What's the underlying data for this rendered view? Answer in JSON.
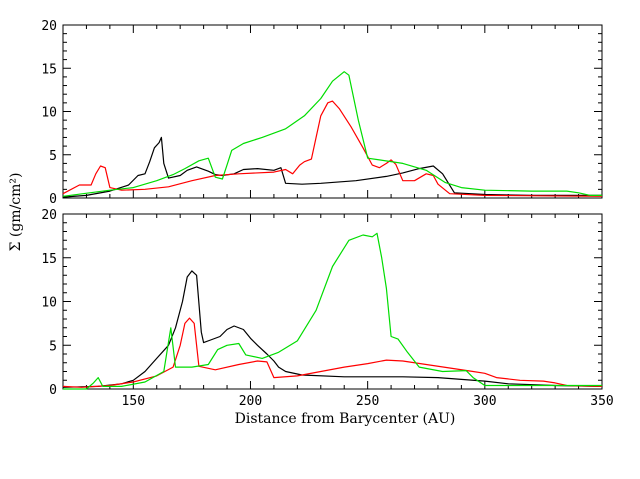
{
  "chart_data": {
    "type": "line",
    "xlabel": "Distance from Barycenter (AU)",
    "ylabel": "Σ (gm/cm²)",
    "xlim": [
      120,
      350
    ],
    "ylim": [
      0,
      20
    ],
    "x_ticks": [
      150,
      200,
      250,
      300,
      350
    ],
    "x_tick_labels": [
      "150",
      "200",
      "250",
      "300",
      "350"
    ],
    "y_ticks": [
      0,
      5,
      10,
      15,
      20
    ],
    "y_tick_labels": [
      "0",
      "5",
      "10",
      "15",
      "20"
    ],
    "grid": false,
    "legend": "none",
    "panels": [
      {
        "panel": "top",
        "series": [
          {
            "color": "#000000",
            "points": [
              [
                120,
                0.1
              ],
              [
                130,
                0.3
              ],
              [
                140,
                0.8
              ],
              [
                148,
                1.5
              ],
              [
                152,
                2.6
              ],
              [
                155,
                2.8
              ],
              [
                157,
                4.2
              ],
              [
                159,
                5.8
              ],
              [
                161,
                6.4
              ],
              [
                162,
                7.0
              ],
              [
                163,
                4.0
              ],
              [
                165,
                2.3
              ],
              [
                170,
                2.6
              ],
              [
                173,
                3.2
              ],
              [
                177,
                3.6
              ],
              [
                182,
                3.1
              ],
              [
                185,
                2.7
              ],
              [
                188,
                2.6
              ],
              [
                193,
                2.8
              ],
              [
                197,
                3.3
              ],
              [
                203,
                3.4
              ],
              [
                210,
                3.2
              ],
              [
                213,
                3.5
              ],
              [
                215,
                1.7
              ],
              [
                222,
                1.6
              ],
              [
                230,
                1.7
              ],
              [
                245,
                2.0
              ],
              [
                258,
                2.5
              ],
              [
                265,
                2.9
              ],
              [
                272,
                3.4
              ],
              [
                278,
                3.7
              ],
              [
                282,
                2.8
              ],
              [
                287,
                0.6
              ],
              [
                300,
                0.4
              ],
              [
                320,
                0.3
              ],
              [
                350,
                0.3
              ]
            ]
          },
          {
            "color": "#ff0000",
            "points": [
              [
                120,
                0.5
              ],
              [
                127,
                1.5
              ],
              [
                132,
                1.5
              ],
              [
                134,
                2.8
              ],
              [
                136,
                3.7
              ],
              [
                138,
                3.5
              ],
              [
                140,
                1.2
              ],
              [
                145,
                0.9
              ],
              [
                155,
                1.0
              ],
              [
                165,
                1.3
              ],
              [
                175,
                2.0
              ],
              [
                185,
                2.6
              ],
              [
                195,
                2.8
              ],
              [
                210,
                3.0
              ],
              [
                215,
                3.3
              ],
              [
                218,
                2.8
              ],
              [
                221,
                3.8
              ],
              [
                223,
                4.2
              ],
              [
                226,
                4.5
              ],
              [
                228,
                7.0
              ],
              [
                230,
                9.5
              ],
              [
                233,
                11.0
              ],
              [
                235,
                11.2
              ],
              [
                238,
                10.3
              ],
              [
                243,
                8.2
              ],
              [
                248,
                5.8
              ],
              [
                252,
                3.8
              ],
              [
                255,
                3.5
              ],
              [
                258,
                4.0
              ],
              [
                260,
                4.4
              ],
              [
                262,
                3.9
              ],
              [
                265,
                2.0
              ],
              [
                270,
                2.0
              ],
              [
                275,
                2.8
              ],
              [
                278,
                2.6
              ],
              [
                280,
                1.6
              ],
              [
                285,
                0.5
              ],
              [
                300,
                0.3
              ],
              [
                350,
                0.2
              ]
            ]
          },
          {
            "color": "#00dd00",
            "points": [
              [
                120,
                0.2
              ],
              [
                140,
                0.9
              ],
              [
                150,
                1.2
              ],
              [
                160,
                2.0
              ],
              [
                167,
                2.7
              ],
              [
                172,
                3.4
              ],
              [
                178,
                4.3
              ],
              [
                182,
                4.6
              ],
              [
                185,
                2.4
              ],
              [
                188,
                2.2
              ],
              [
                190,
                3.8
              ],
              [
                192,
                5.5
              ],
              [
                197,
                6.3
              ],
              [
                205,
                7.0
              ],
              [
                215,
                8.0
              ],
              [
                223,
                9.5
              ],
              [
                230,
                11.5
              ],
              [
                235,
                13.5
              ],
              [
                240,
                14.6
              ],
              [
                242,
                14.2
              ],
              [
                246,
                9.0
              ],
              [
                250,
                4.6
              ],
              [
                255,
                4.4
              ],
              [
                265,
                4.0
              ],
              [
                275,
                3.2
              ],
              [
                283,
                1.8
              ],
              [
                290,
                1.2
              ],
              [
                300,
                0.9
              ],
              [
                320,
                0.8
              ],
              [
                335,
                0.8
              ],
              [
                340,
                0.6
              ],
              [
                345,
                0.3
              ],
              [
                350,
                0.3
              ]
            ]
          }
        ]
      },
      {
        "panel": "bottom",
        "series": [
          {
            "color": "#000000",
            "points": [
              [
                120,
                0.2
              ],
              [
                135,
                0.3
              ],
              [
                145,
                0.6
              ],
              [
                150,
                1.0
              ],
              [
                155,
                2.0
              ],
              [
                160,
                3.5
              ],
              [
                165,
                5.0
              ],
              [
                168,
                7.0
              ],
              [
                171,
                10.0
              ],
              [
                173,
                12.8
              ],
              [
                175,
                13.5
              ],
              [
                177,
                13.0
              ],
              [
                179,
                6.5
              ],
              [
                180,
                5.3
              ],
              [
                183,
                5.6
              ],
              [
                187,
                6.0
              ],
              [
                190,
                6.8
              ],
              [
                193,
                7.2
              ],
              [
                197,
                6.8
              ],
              [
                200,
                5.8
              ],
              [
                203,
                5.0
              ],
              [
                207,
                4.0
              ],
              [
                210,
                3.2
              ],
              [
                212,
                2.5
              ],
              [
                215,
                2.0
              ],
              [
                222,
                1.6
              ],
              [
                240,
                1.4
              ],
              [
                265,
                1.4
              ],
              [
                280,
                1.3
              ],
              [
                300,
                0.9
              ],
              [
                310,
                0.6
              ],
              [
                330,
                0.4
              ],
              [
                350,
                0.3
              ]
            ]
          },
          {
            "color": "#ff0000",
            "points": [
              [
                120,
                0.3
              ],
              [
                128,
                0.2
              ],
              [
                140,
                0.4
              ],
              [
                150,
                0.8
              ],
              [
                160,
                1.5
              ],
              [
                167,
                2.5
              ],
              [
                170,
                5.0
              ],
              [
                172,
                7.5
              ],
              [
                174,
                8.1
              ],
              [
                176,
                7.5
              ],
              [
                178,
                2.6
              ],
              [
                185,
                2.2
              ],
              [
                195,
                2.8
              ],
              [
                203,
                3.2
              ],
              [
                207,
                3.1
              ],
              [
                210,
                1.3
              ],
              [
                220,
                1.5
              ],
              [
                230,
                2.0
              ],
              [
                240,
                2.5
              ],
              [
                250,
                2.9
              ],
              [
                258,
                3.3
              ],
              [
                265,
                3.2
              ],
              [
                275,
                2.8
              ],
              [
                285,
                2.4
              ],
              [
                295,
                2.0
              ],
              [
                300,
                1.8
              ],
              [
                305,
                1.3
              ],
              [
                315,
                1.0
              ],
              [
                325,
                0.9
              ],
              [
                330,
                0.7
              ],
              [
                335,
                0.4
              ],
              [
                350,
                0.3
              ]
            ]
          },
          {
            "color": "#00dd00",
            "points": [
              [
                120,
                0.0
              ],
              [
                130,
                0.0
              ],
              [
                133,
                0.7
              ],
              [
                135,
                1.3
              ],
              [
                137,
                0.3
              ],
              [
                145,
                0.3
              ],
              [
                155,
                0.8
              ],
              [
                163,
                2.0
              ],
              [
                166,
                7.0
              ],
              [
                168,
                2.5
              ],
              [
                175,
                2.5
              ],
              [
                182,
                2.8
              ],
              [
                186,
                4.5
              ],
              [
                190,
                5.0
              ],
              [
                195,
                5.2
              ],
              [
                198,
                3.9
              ],
              [
                205,
                3.5
              ],
              [
                212,
                4.2
              ],
              [
                220,
                5.5
              ],
              [
                228,
                9.0
              ],
              [
                235,
                14.0
              ],
              [
                242,
                17.0
              ],
              [
                248,
                17.6
              ],
              [
                252,
                17.4
              ],
              [
                254,
                17.8
              ],
              [
                256,
                15.0
              ],
              [
                258,
                11.5
              ],
              [
                260,
                6.0
              ],
              [
                263,
                5.7
              ],
              [
                267,
                4.2
              ],
              [
                272,
                2.5
              ],
              [
                282,
                2.0
              ],
              [
                292,
                2.1
              ],
              [
                295,
                1.3
              ],
              [
                300,
                0.4
              ],
              [
                320,
                0.4
              ],
              [
                350,
                0.4
              ]
            ]
          }
        ]
      }
    ]
  }
}
